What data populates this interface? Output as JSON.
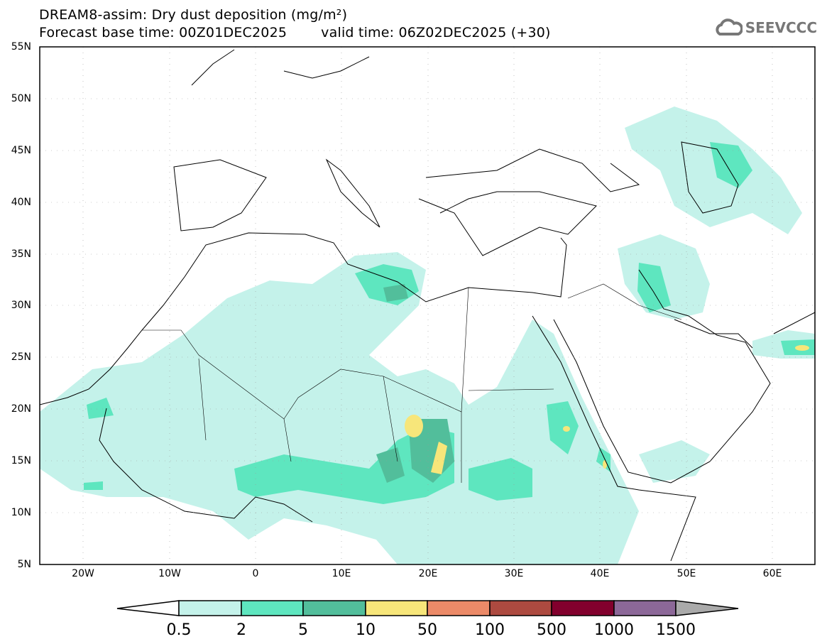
{
  "header": {
    "title": "DREAM8-assim: Dry dust deposition (mg/m²)",
    "base_time": "Forecast base time: 00Z01DEC2025",
    "valid_time": "valid time: 06Z02DEC2025 (+30)",
    "logo": "SEEVCCC",
    "logo_icon": "cloud-icon"
  },
  "map": {
    "lat_labels": [
      "55N",
      "50N",
      "45N",
      "40N",
      "35N",
      "30N",
      "25N",
      "20N",
      "15N",
      "10N",
      "5N"
    ],
    "lon_labels": [
      "20W",
      "10W",
      "0",
      "10E",
      "20E",
      "30E",
      "40E",
      "50E",
      "60E"
    ],
    "lon_range": [
      -25,
      65
    ],
    "lat_range": [
      5,
      55
    ]
  },
  "colorbar": {
    "labels": [
      "0.5",
      "2",
      "5",
      "10",
      "50",
      "100",
      "500",
      "1000",
      "1500"
    ],
    "colors": [
      "#c4f2ea",
      "#5ee6bf",
      "#52be9b",
      "#f7e67a",
      "#ec8a68",
      "#ad4a40",
      "#82002d",
      "#8c6898"
    ],
    "under_color": "#ffffff",
    "over_color": "#aaaaaa"
  }
}
